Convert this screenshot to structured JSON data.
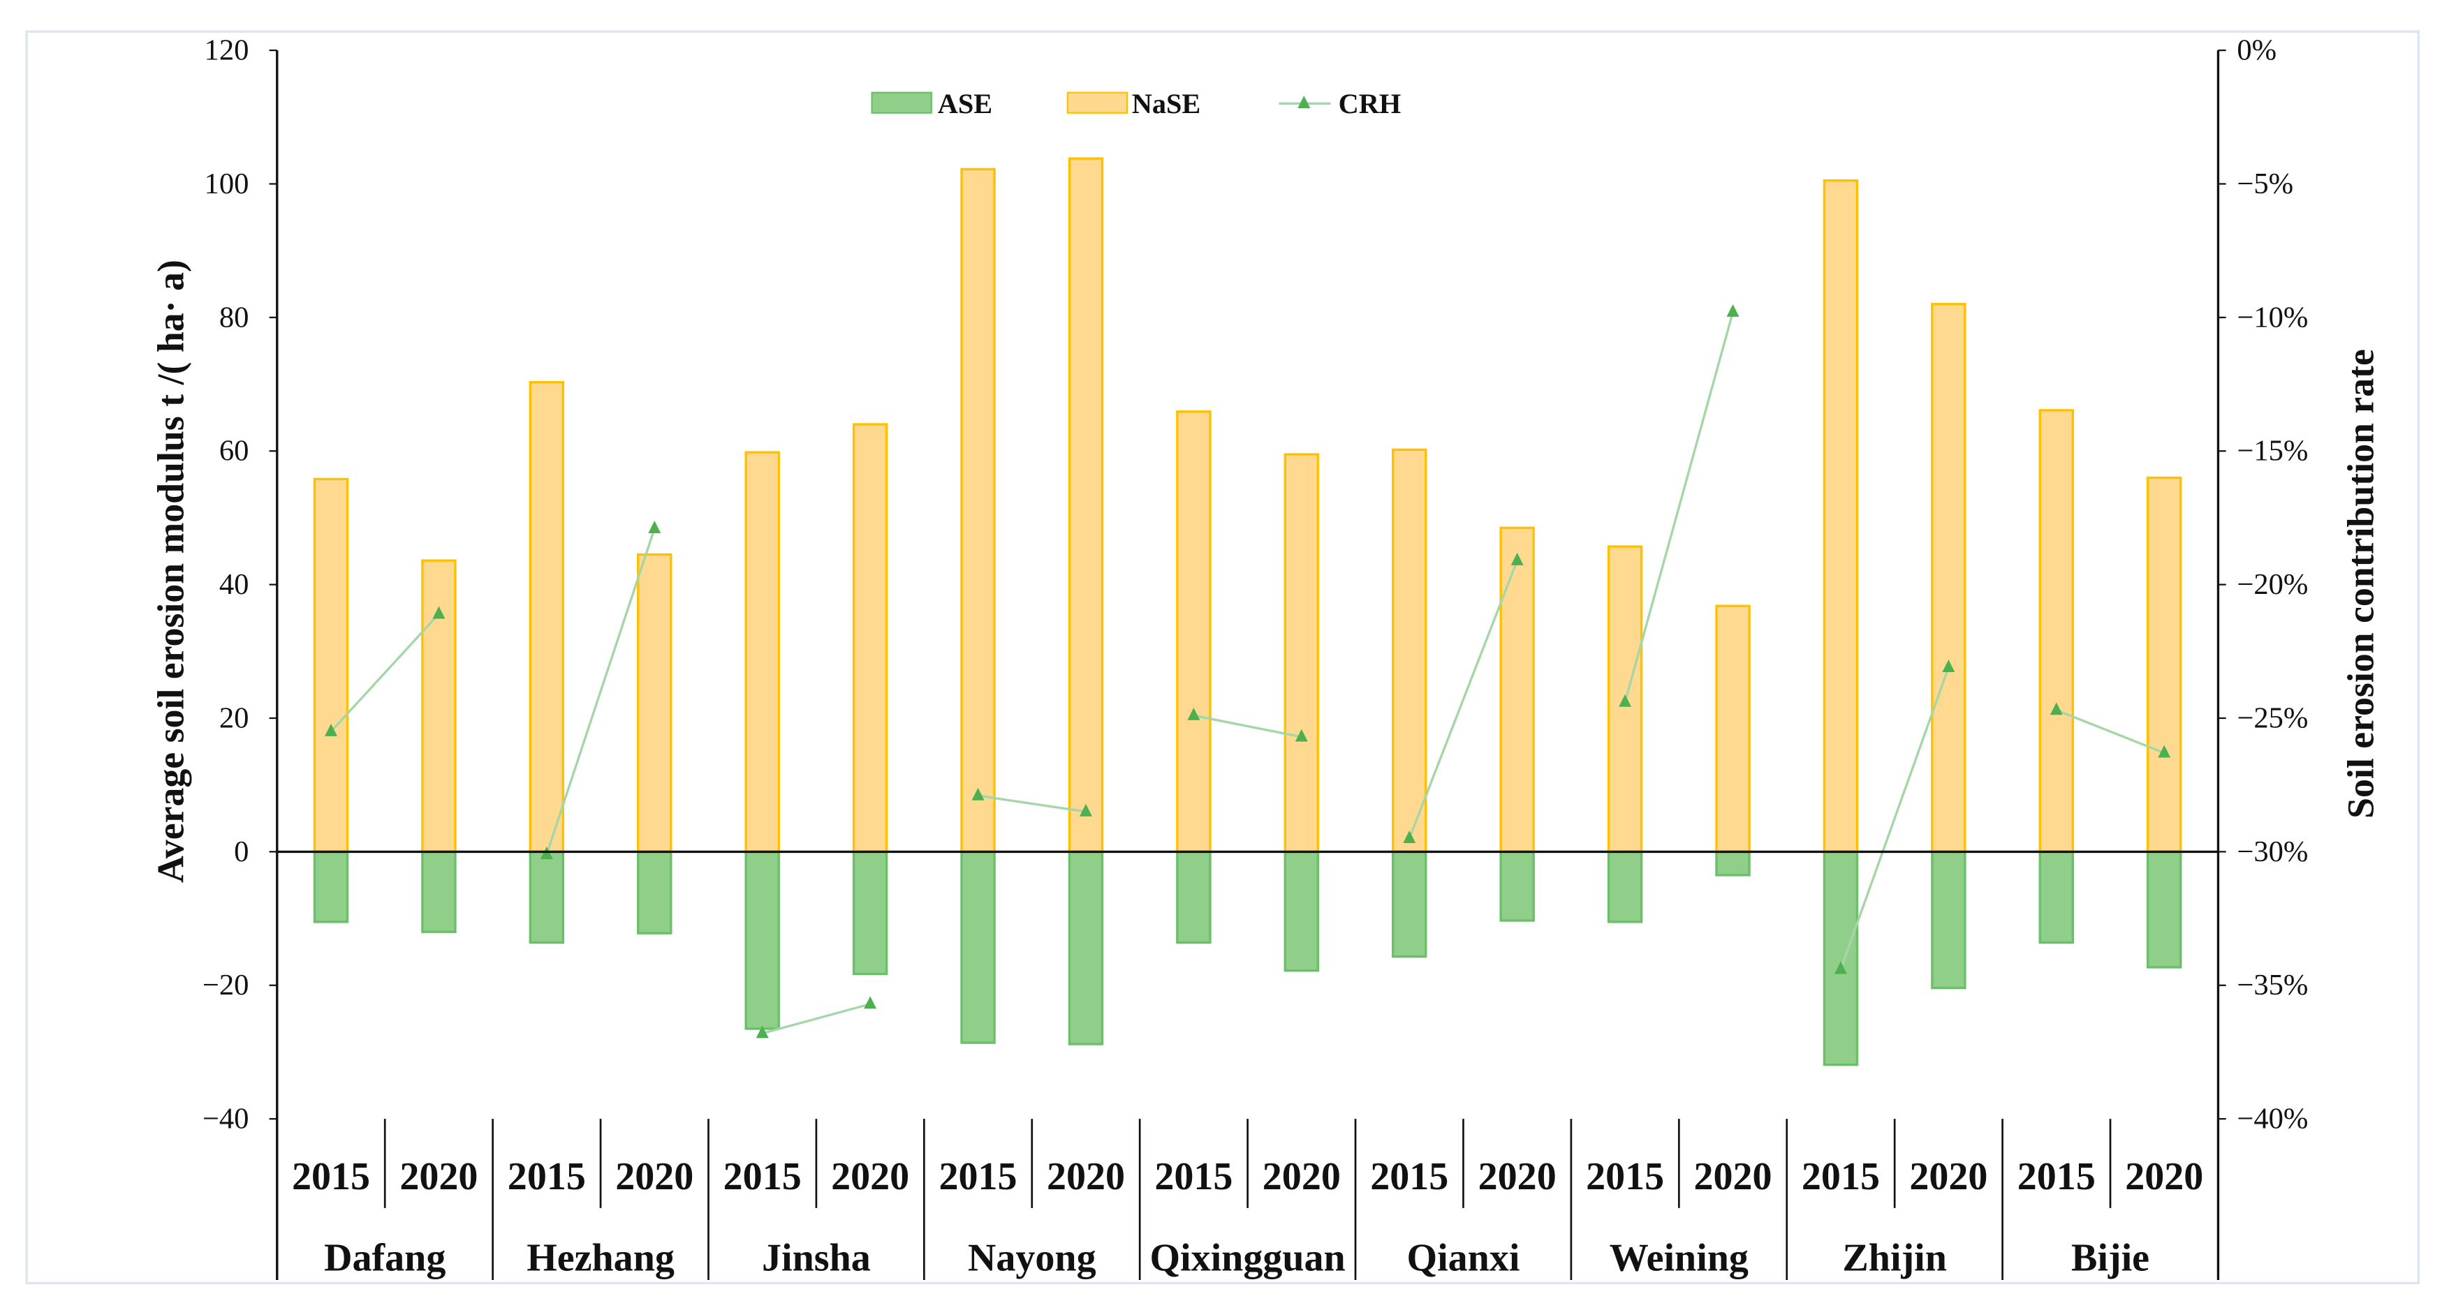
{
  "chart_data": {
    "type": "bar",
    "ylabel": "Average soil erosion modulus t /( ha· a)",
    "y2label": "Soil erosion contribution rate",
    "ylim": [
      -40,
      120
    ],
    "y2lim": [
      -40,
      0
    ],
    "yticks": [
      "120",
      "100",
      "80",
      "60",
      "40",
      "20",
      "0",
      "−20",
      "−40"
    ],
    "y2ticks": [
      "0%",
      "−5%",
      "−10%",
      "−15%",
      "−20%",
      "−25%",
      "−30%",
      "−35%",
      "−40%"
    ],
    "grid": false,
    "legend_position": "top-center",
    "groups": [
      "Dafang",
      "Hezhang",
      "Jinsha",
      "Nayong",
      "Qixingguan",
      "Qianxi",
      "Weining",
      "Zhijin",
      "Bijie"
    ],
    "years": [
      "2015",
      "2020"
    ],
    "series": [
      {
        "name": "ASE",
        "type": "bar",
        "axis": "left",
        "color": "#8fcf8a",
        "edge": "#6cbf6a",
        "values": [
          -10.5,
          -12.0,
          -13.6,
          -12.2,
          -26.5,
          -18.3,
          -28.6,
          -28.8,
          -13.6,
          -17.8,
          -15.7,
          -10.3,
          -10.5,
          -3.5,
          -31.9,
          -20.4,
          -13.6,
          -17.3
        ]
      },
      {
        "name": "NaSE",
        "type": "bar",
        "axis": "left",
        "color": "#ffd990",
        "edge": "#ffc000",
        "values": [
          55.8,
          43.6,
          70.3,
          44.5,
          59.8,
          64.0,
          102.2,
          103.8,
          65.9,
          59.5,
          60.2,
          48.5,
          45.7,
          36.8,
          100.5,
          82.0,
          66.1,
          56.0
        ]
      },
      {
        "name": "CRH",
        "type": "line",
        "axis": "right",
        "color": "#4caf50",
        "unit": "%",
        "values": [
          -25.5,
          -21.1,
          -30.1,
          -17.9,
          -36.8,
          -35.7,
          -27.9,
          -28.5,
          -24.9,
          -25.7,
          -29.5,
          -19.1,
          -24.4,
          -9.8,
          -34.4,
          -23.1,
          -24.7,
          -26.3
        ]
      }
    ]
  }
}
